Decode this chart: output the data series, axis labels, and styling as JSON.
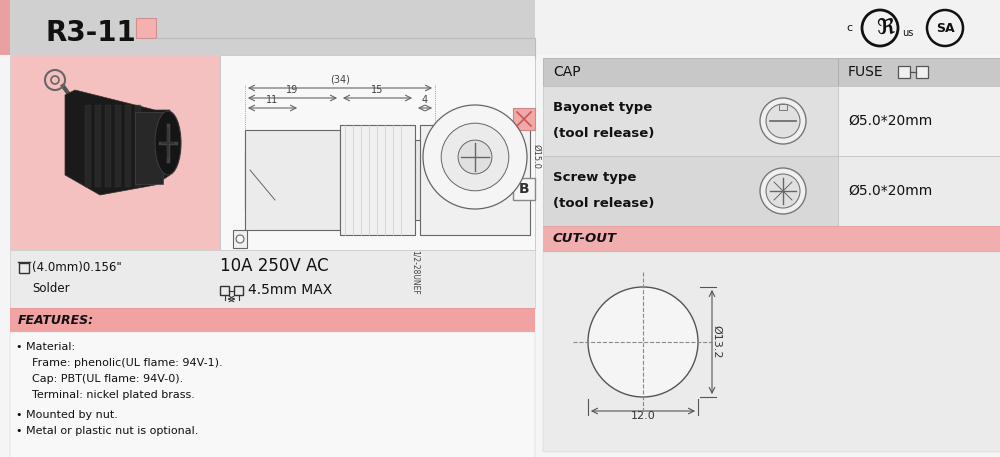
{
  "bg_color": "#f2f2f2",
  "title": "R3-11",
  "features_title": "FEATURES:",
  "features_items": [
    "Material:",
    "Frame: phenolic(UL flame: 94V-1).",
    "Cap: PBT(UL flame: 94V-0).",
    "Terminal: nickel plated brass.",
    "Mounted by nut.",
    "Metal or plastic nut is optional."
  ],
  "spec1_line1": "(4.0mm)0.156\"",
  "spec1_line2": "Solder",
  "spec2_line1": "10A 250V AC",
  "spec2_line2": "4.5mm MAX",
  "cap_label": "CAP",
  "fuse_label": "FUSE",
  "row1_cap_line1": "Bayonet type",
  "row1_cap_line2": "(tool release)",
  "row2_cap_line1": "Screw type",
  "row2_cap_line2": "(tool release)",
  "fuse_size": "Ø5.0*20mm",
  "cutout_label": "CUT-OUT",
  "cutout_d": "Ø13.2",
  "cutout_w": "12.0",
  "dim34": "(34)",
  "dim19": "19",
  "dim15": "15",
  "dim11": "11",
  "dim4": "4",
  "dim15_0": "Ø15.0",
  "thread_label": "1/2-28UNEF",
  "header_gray": "#d0d0d0",
  "mid_gray": "#c8c8c8",
  "light_gray": "#e8e8e8",
  "lighter_gray": "#eeeeee",
  "white": "#ffffff",
  "pink_bar": "#f0a0a0",
  "pink_photo": "#f5c8c8",
  "pink_square": "#f0b0b0",
  "dark": "#222222",
  "line_color": "#666666",
  "dim_color": "#444444"
}
